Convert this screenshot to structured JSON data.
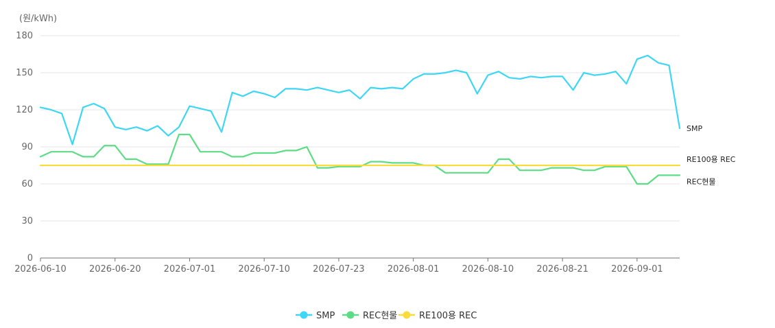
{
  "chart_data": {
    "type": "line",
    "y_unit": "(원/kWh)",
    "ylim": [
      0,
      180
    ],
    "y_ticks": [
      0,
      30,
      60,
      90,
      120,
      150,
      180
    ],
    "grid": true,
    "legend_position": "bottom",
    "x_tick_labels": [
      "2026-06-10",
      "2026-06-20",
      "2026-07-01",
      "2026-07-10",
      "2026-07-23",
      "2026-08-01",
      "2026-08-10",
      "2026-08-21",
      "2026-09-01"
    ],
    "x_tick_index": [
      0,
      7,
      14,
      21,
      28,
      35,
      42,
      49,
      56
    ],
    "series": [
      {
        "name": "SMP",
        "color": "#3dd6f5",
        "end_label": "SMP",
        "values": [
          122,
          120,
          117,
          92,
          122,
          125,
          121,
          106,
          104,
          106,
          103,
          107,
          99,
          106,
          123,
          121,
          119,
          102,
          134,
          131,
          135,
          133,
          130,
          137,
          137,
          136,
          138,
          136,
          134,
          136,
          129,
          138,
          137,
          138,
          137,
          145,
          149,
          149,
          150,
          152,
          150,
          133,
          148,
          151,
          146,
          145,
          147,
          146,
          147,
          147,
          136,
          150,
          148,
          149,
          151,
          141,
          161,
          164,
          158,
          156,
          105
        ]
      },
      {
        "name": "REC현물",
        "color": "#5cdc84",
        "end_label": "REC현물",
        "values": [
          82,
          86,
          86,
          86,
          82,
          82,
          91,
          91,
          80,
          80,
          76,
          76,
          76,
          100,
          100,
          86,
          86,
          86,
          82,
          82,
          85,
          85,
          85,
          87,
          87,
          90,
          73,
          73,
          74,
          74,
          74,
          78,
          78,
          77,
          77,
          77,
          75,
          75,
          69,
          69,
          69,
          69,
          69,
          80,
          80,
          71,
          71,
          71,
          73,
          73,
          73,
          71,
          71,
          74,
          74,
          74,
          60,
          60,
          67,
          67,
          67
        ]
      },
      {
        "name": "RE100용 REC",
        "color": "#f9dc3c",
        "end_label": "RE100용 REC",
        "values": [
          75,
          75,
          75,
          75,
          75,
          75,
          75,
          75,
          75,
          75,
          75,
          75,
          75,
          75,
          75,
          75,
          75,
          75,
          75,
          75,
          75,
          75,
          75,
          75,
          75,
          75,
          75,
          75,
          75,
          75,
          75,
          75,
          75,
          75,
          75,
          75,
          75,
          75,
          75,
          75,
          75,
          75,
          75,
          75,
          75,
          75,
          75,
          75,
          75,
          75,
          75,
          75,
          75,
          75,
          75,
          75,
          75,
          75,
          75,
          75,
          75
        ]
      }
    ]
  }
}
